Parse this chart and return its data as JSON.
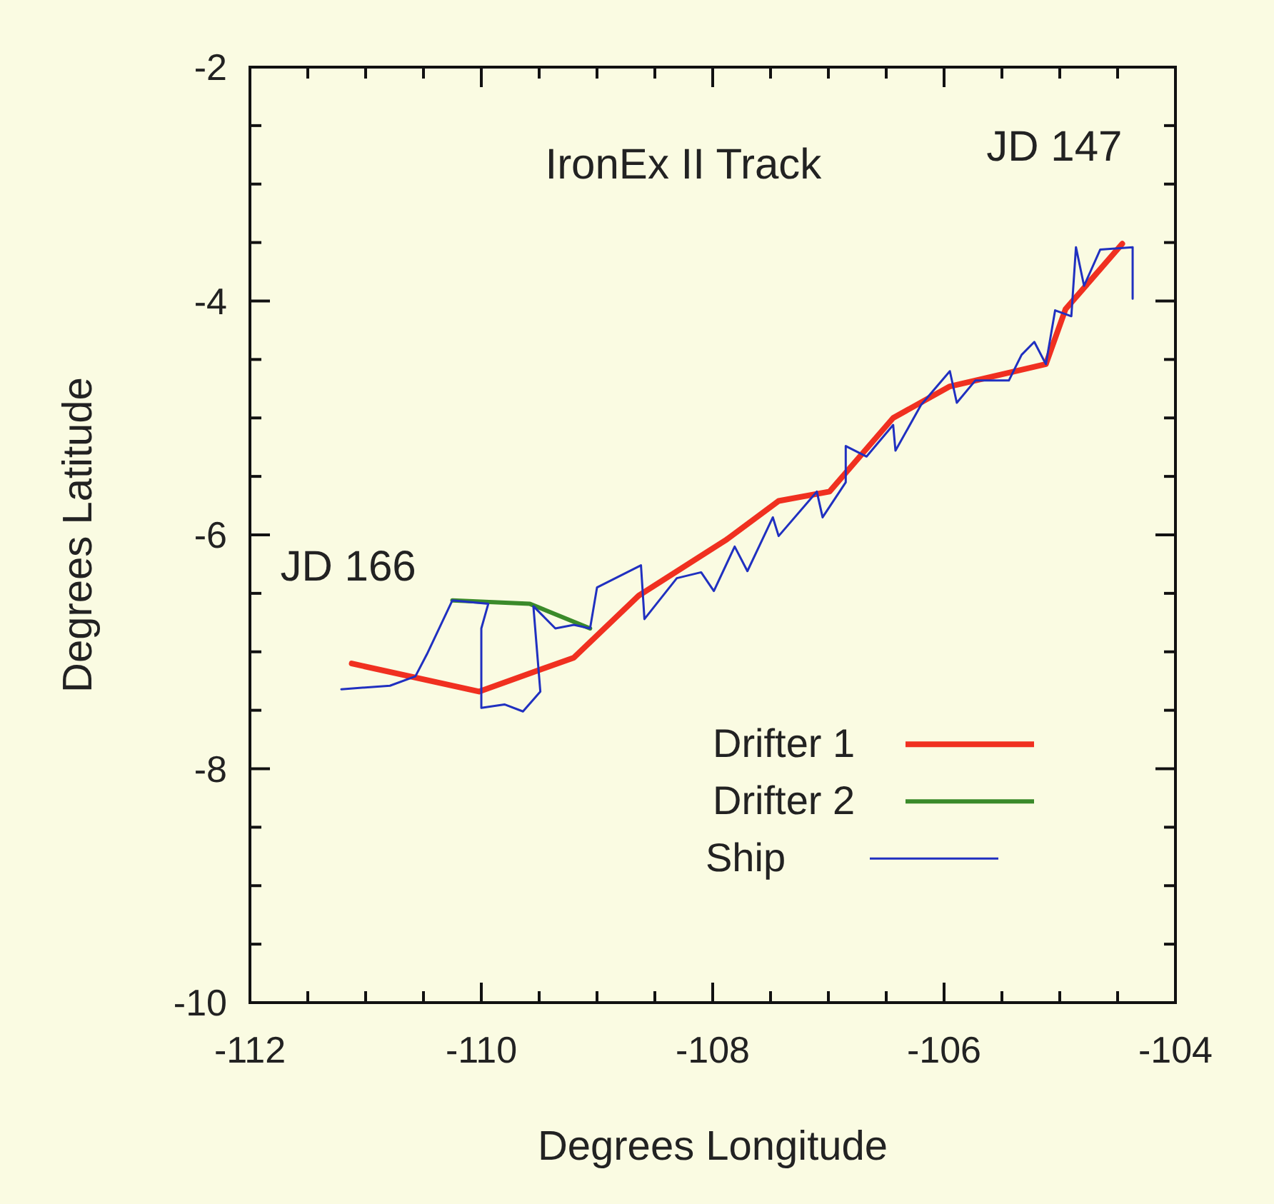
{
  "chart_data": {
    "type": "line",
    "title": "IronEx II  Track",
    "xlabel": "Degrees Longitude",
    "ylabel": "Degrees Latitude",
    "xlim": [
      -112,
      -104
    ],
    "ylim": [
      -10,
      -2
    ],
    "xticks": [
      -112,
      {
        "value": -111.5,
        "label": null
      },
      {
        "value": -111,
        "label": null
      },
      {
        "value": -110.5,
        "label": null
      },
      -110,
      {
        "value": -109.5,
        "label": null
      },
      {
        "value": -109,
        "label": null
      },
      {
        "value": -108.5,
        "label": null
      },
      -108,
      {
        "value": -107.5,
        "label": null
      },
      {
        "value": -107,
        "label": null
      },
      {
        "value": -106.5,
        "label": null
      },
      -106,
      {
        "value": -105.5,
        "label": null
      },
      {
        "value": -105,
        "label": null
      },
      {
        "value": -104.5,
        "label": null
      },
      -104
    ],
    "yticks": [
      -10,
      {
        "value": -9.5,
        "label": null
      },
      {
        "value": -9,
        "label": null
      },
      {
        "value": -8.5,
        "label": null
      },
      -8,
      {
        "value": -7.5,
        "label": null
      },
      {
        "value": -7,
        "label": null
      },
      {
        "value": -6.5,
        "label": null
      },
      -6,
      {
        "value": -5.5,
        "label": null
      },
      {
        "value": -5,
        "label": null
      },
      {
        "value": -4.5,
        "label": null
      },
      -4,
      {
        "value": -3.5,
        "label": null
      },
      {
        "value": -3,
        "label": null
      },
      {
        "value": -2.5,
        "label": null
      },
      -2
    ],
    "grid": false,
    "legend": "bottom right",
    "marker": "none",
    "annotations": [
      {
        "text": "JD 147",
        "x": -104.46,
        "y": -3.51
      },
      {
        "text": "JD 166",
        "x": -111.12,
        "y": -7.1
      }
    ],
    "series": [
      {
        "name": "Drifter 1",
        "color": "#f03020",
        "x": [
          -111.12,
          -110.02,
          -109.2,
          -108.64,
          -107.88,
          -107.43,
          -106.99,
          -106.44,
          -105.95,
          -105.12,
          -104.95,
          -104.46
        ],
        "values": [
          -7.1,
          -7.34,
          -7.05,
          -6.52,
          -6.04,
          -5.71,
          -5.63,
          -5.0,
          -4.73,
          -4.54,
          -4.07,
          -3.51
        ]
      },
      {
        "name": "Drifter 2",
        "color": "#3a8a2a",
        "x": [
          -110.25,
          -109.58,
          -109.06
        ],
        "values": [
          -6.56,
          -6.59,
          -6.8
        ]
      },
      {
        "name": "Ship",
        "color": "#2030c0",
        "x": [
          -111.21,
          -110.79,
          -110.57,
          -110.47,
          -110.25,
          -109.94,
          -110.0,
          -110.0,
          -109.8,
          -109.64,
          -109.49,
          -109.55,
          -109.36,
          -109.2,
          -109.06,
          -109.0,
          -108.62,
          -108.59,
          -108.31,
          -108.1,
          -107.99,
          -107.81,
          -107.7,
          -107.48,
          -107.43,
          -107.1,
          -107.05,
          -106.85,
          -106.85,
          -106.67,
          -106.44,
          -106.42,
          -106.2,
          -105.95,
          -105.89,
          -105.73,
          -105.44,
          -105.33,
          -105.22,
          -105.12,
          -105.04,
          -104.9,
          -104.86,
          -104.79,
          -104.65,
          -104.37,
          -104.37
        ],
        "values": [
          -7.32,
          -7.29,
          -7.21,
          -7.02,
          -6.56,
          -6.59,
          -6.8,
          -7.48,
          -7.45,
          -7.51,
          -7.34,
          -6.61,
          -6.8,
          -6.77,
          -6.8,
          -6.45,
          -6.26,
          -6.72,
          -6.37,
          -6.32,
          -6.48,
          -6.1,
          -6.31,
          -5.85,
          -6.01,
          -5.63,
          -5.85,
          -5.55,
          -5.24,
          -5.33,
          -5.06,
          -5.28,
          -4.89,
          -4.6,
          -4.87,
          -4.68,
          -4.68,
          -4.46,
          -4.35,
          -4.54,
          -4.08,
          -4.13,
          -3.54,
          -3.87,
          -3.56,
          -3.54,
          -3.98
        ]
      }
    ]
  }
}
